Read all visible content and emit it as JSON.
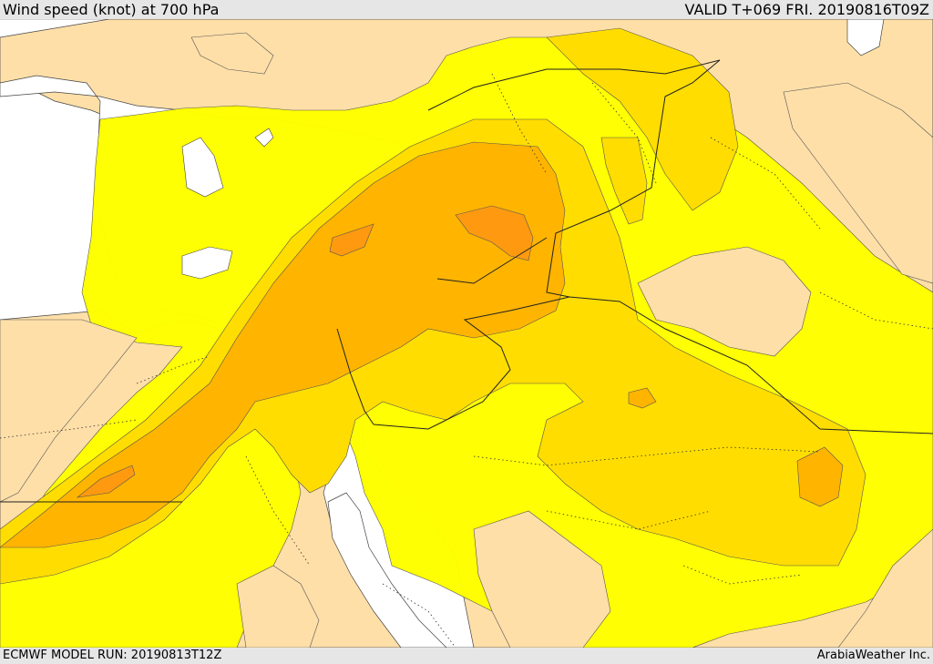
{
  "header": {
    "title": "Wind speed (knot) at 700 hPa",
    "valid": "VALID T+069 FRI. 20190816T09Z"
  },
  "footer": {
    "model_run": "ECMWF MODEL RUN: 20190813T12Z",
    "credit": "ArabiaWeather Inc."
  },
  "palette": {
    "sea": "#ffffff",
    "land": "#ffdfa8",
    "wind_low": "#ffff00",
    "wind_mid": "#ffdd00",
    "wind_high": "#ffb400",
    "wind_max": "#ff9a10"
  }
}
